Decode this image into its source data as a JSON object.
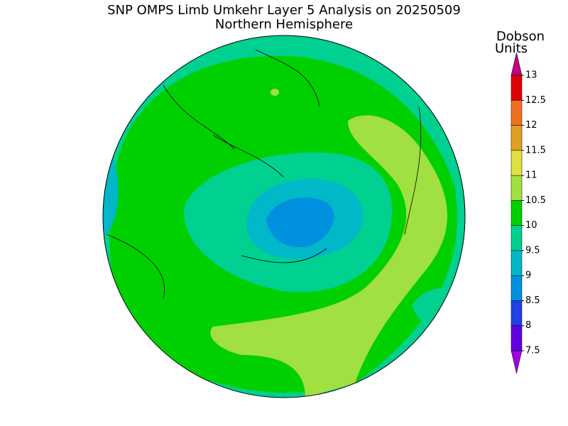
{
  "title": "SNP OMPS Limb Umkehr Layer 5 Analysis on 20250509",
  "subtitle": "Northern Hemisphere",
  "colorbar": {
    "title_lines": [
      "Dobson",
      "Units"
    ],
    "levels": [
      7.5,
      8,
      8.5,
      9,
      9.5,
      10,
      10.5,
      11,
      11.5,
      12,
      12.5,
      13
    ],
    "colors": [
      "#a000e0",
      "#6000e0",
      "#2040e8",
      "#0090e0",
      "#00b8c8",
      "#00d090",
      "#00d000",
      "#a0e040",
      "#e0e040",
      "#e0a020",
      "#f07020",
      "#e00000",
      "#c00080"
    ]
  }
}
